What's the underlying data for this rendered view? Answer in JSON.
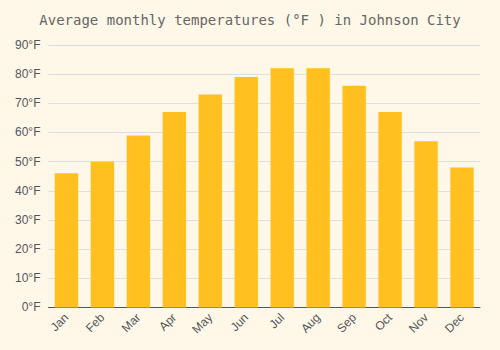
{
  "chart_data": {
    "type": "bar",
    "title": "Average monthly temperatures (°F ) in Johnson City",
    "categories": [
      "Jan",
      "Feb",
      "Mar",
      "Apr",
      "May",
      "Jun",
      "Jul",
      "Aug",
      "Sep",
      "Oct",
      "Nov",
      "Dec"
    ],
    "values": [
      46,
      50,
      59,
      67,
      73,
      79,
      82,
      82,
      76,
      67,
      57,
      48
    ],
    "color": "#FFC020",
    "ylim": [
      0,
      90
    ],
    "yticks": [
      {
        "value": 0,
        "label": "0°F"
      },
      {
        "value": 10,
        "label": "10°F"
      },
      {
        "value": 20,
        "label": "20°F"
      },
      {
        "value": 30,
        "label": "30°F"
      },
      {
        "value": 40,
        "label": "40°F"
      },
      {
        "value": 50,
        "label": "50°F"
      },
      {
        "value": 60,
        "label": "60°F"
      },
      {
        "value": 70,
        "label": "70°F"
      },
      {
        "value": 80,
        "label": "80°F"
      },
      {
        "value": 90,
        "label": "90°F"
      }
    ],
    "grid": true
  }
}
